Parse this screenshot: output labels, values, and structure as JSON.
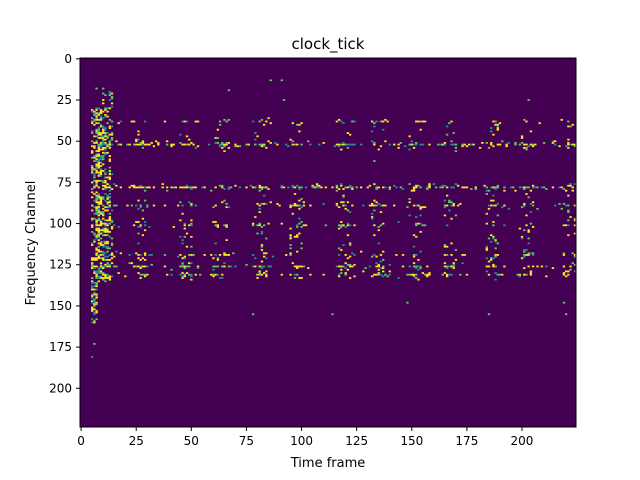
{
  "chart_data": {
    "type": "heatmap",
    "title": "clock_tick",
    "xlabel": "Time frame",
    "ylabel": "Frequency Channel",
    "xlim": [
      -0.5,
      224.5
    ],
    "ylim": [
      223.5,
      -0.5
    ],
    "x_ticks": [
      0,
      25,
      50,
      75,
      100,
      125,
      150,
      175,
      200
    ],
    "y_ticks": [
      0,
      25,
      50,
      75,
      100,
      125,
      150,
      175,
      200
    ],
    "grid": false,
    "colormap": "viridis",
    "background_color": "#440154",
    "cell_colors": {
      "low": "#21908d",
      "mid": "#5ec962",
      "high": "#fde725"
    },
    "onset_column": {
      "x_range": [
        5,
        14
      ],
      "y_range": [
        18,
        160
      ],
      "tail_points": [
        [
          6,
          173
        ],
        [
          5,
          181
        ]
      ]
    },
    "events_x": [
      10,
      25,
      46,
      62,
      80,
      96,
      118,
      133,
      150,
      166,
      185,
      200,
      220
    ],
    "horizontal_bands": [
      {
        "y": 38,
        "density": 0.35
      },
      {
        "y": 52,
        "density": 0.75
      },
      {
        "y": 78,
        "density": 0.85
      },
      {
        "y": 89,
        "density": 0.55
      },
      {
        "y": 101,
        "density": 0.35
      },
      {
        "y": 119,
        "density": 0.35
      },
      {
        "y": 126,
        "density": 0.6
      },
      {
        "y": 131,
        "density": 0.5
      }
    ],
    "sparse_points": [
      [
        86,
        13
      ],
      [
        91,
        13
      ],
      [
        67,
        19
      ],
      [
        92,
        25
      ],
      [
        203,
        25
      ],
      [
        10,
        18
      ],
      [
        13,
        22
      ],
      [
        133,
        62
      ],
      [
        78,
        155
      ],
      [
        114,
        155
      ],
      [
        148,
        148
      ],
      [
        185,
        155
      ],
      [
        220,
        155
      ],
      [
        219,
        148
      ]
    ]
  }
}
